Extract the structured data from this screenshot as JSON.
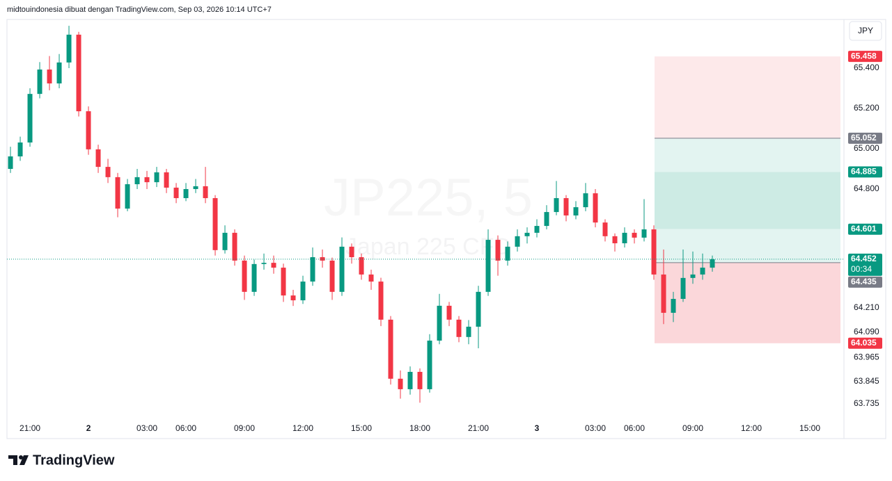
{
  "header": "midtouindonesia dibuat dengan TradingView.com, Sep 03, 2026 10:14 UTC+7",
  "currency_button": "JPY",
  "logo": "TradingView",
  "chart_data": {
    "type": "candlestick",
    "watermark": {
      "symbol": "JP225, 5",
      "name": "Japan 225 CFD"
    },
    "up_color": "#089981",
    "down_color": "#f23645",
    "xlim": [
      -0.36,
      85.5
    ],
    "xticks": [
      {
        "value": 2,
        "label": "21:00"
      },
      {
        "value": 8,
        "label": "2"
      },
      {
        "value": 14,
        "label": "03:00"
      },
      {
        "value": 18,
        "label": "06:00"
      },
      {
        "value": 24,
        "label": "09:00"
      },
      {
        "value": 30,
        "label": "12:00"
      },
      {
        "value": 36,
        "label": "15:00"
      },
      {
        "value": 42,
        "label": "18:00"
      },
      {
        "value": 48,
        "label": "21:00"
      },
      {
        "value": 54,
        "label": "3"
      },
      {
        "value": 60,
        "label": "03:00"
      },
      {
        "value": 64,
        "label": "06:00"
      },
      {
        "value": 70,
        "label": "09:00"
      },
      {
        "value": 76,
        "label": "12:00"
      },
      {
        "value": 82,
        "label": "15:00"
      }
    ],
    "ylim": [
      63.655,
      65.669
    ],
    "yticks": [
      {
        "value": 65.4,
        "label": "65.400"
      },
      {
        "value": 65.2,
        "label": "65.200"
      },
      {
        "value": 65.0,
        "label": "65.000"
      },
      {
        "value": 64.8,
        "label": "64.800"
      },
      {
        "value": 64.21,
        "label": "64.210"
      },
      {
        "value": 64.09,
        "label": "64.090"
      },
      {
        "value": 63.965,
        "label": "63.965"
      },
      {
        "value": 63.845,
        "label": "63.845"
      },
      {
        "value": 63.735,
        "label": "63.735"
      }
    ],
    "ohlc": [
      [
        64.9,
        65.01,
        64.88,
        64.962
      ],
      [
        64.962,
        65.06,
        64.94,
        65.031
      ],
      [
        65.031,
        65.3,
        65.01,
        65.272
      ],
      [
        65.272,
        65.43,
        65.25,
        65.393
      ],
      [
        65.393,
        65.46,
        65.29,
        65.324
      ],
      [
        65.324,
        65.47,
        65.3,
        65.428
      ],
      [
        65.428,
        65.61,
        65.4,
        65.566
      ],
      [
        65.566,
        65.58,
        65.16,
        65.186
      ],
      [
        65.186,
        65.21,
        64.97,
        64.997
      ],
      [
        64.997,
        65.02,
        64.88,
        64.91
      ],
      [
        64.91,
        64.95,
        64.83,
        64.859
      ],
      [
        64.859,
        64.88,
        64.66,
        64.703
      ],
      [
        64.703,
        64.85,
        64.69,
        64.824
      ],
      [
        64.824,
        64.9,
        64.8,
        64.859
      ],
      [
        64.859,
        64.89,
        64.8,
        64.834
      ],
      [
        64.834,
        64.91,
        64.81,
        64.883
      ],
      [
        64.883,
        64.9,
        64.78,
        64.807
      ],
      [
        64.807,
        64.83,
        64.73,
        64.755
      ],
      [
        64.755,
        64.83,
        64.74,
        64.8
      ],
      [
        64.8,
        64.85,
        64.78,
        64.814
      ],
      [
        64.814,
        64.91,
        64.73,
        64.755
      ],
      [
        64.755,
        64.77,
        64.47,
        64.497
      ],
      [
        64.497,
        64.62,
        64.48,
        64.583
      ],
      [
        64.583,
        64.6,
        64.42,
        64.445
      ],
      [
        64.445,
        64.47,
        64.25,
        64.29
      ],
      [
        64.29,
        64.45,
        64.27,
        64.428
      ],
      [
        64.428,
        64.48,
        64.4,
        64.434
      ],
      [
        64.434,
        64.47,
        64.38,
        64.41
      ],
      [
        64.41,
        64.43,
        64.24,
        64.272
      ],
      [
        64.272,
        64.3,
        64.22,
        64.248
      ],
      [
        64.248,
        64.37,
        64.23,
        64.341
      ],
      [
        64.341,
        64.51,
        64.32,
        64.462
      ],
      [
        64.462,
        64.5,
        64.41,
        64.445
      ],
      [
        64.445,
        64.46,
        64.25,
        64.29
      ],
      [
        64.29,
        64.56,
        64.27,
        64.514
      ],
      [
        64.514,
        64.53,
        64.43,
        64.462
      ],
      [
        64.462,
        64.48,
        64.35,
        64.376
      ],
      [
        64.376,
        64.4,
        64.3,
        64.341
      ],
      [
        64.341,
        64.36,
        64.12,
        64.152
      ],
      [
        64.152,
        64.17,
        63.83,
        63.859
      ],
      [
        63.859,
        63.9,
        63.76,
        63.807
      ],
      [
        63.807,
        63.92,
        63.78,
        63.893
      ],
      [
        63.893,
        63.91,
        63.74,
        63.807
      ],
      [
        63.807,
        64.08,
        63.79,
        64.048
      ],
      [
        64.048,
        64.28,
        64.03,
        64.221
      ],
      [
        64.221,
        64.24,
        64.12,
        64.152
      ],
      [
        64.152,
        64.17,
        64.04,
        64.066
      ],
      [
        64.066,
        64.15,
        64.03,
        64.117
      ],
      [
        64.117,
        64.32,
        64.01,
        64.29
      ],
      [
        64.29,
        64.6,
        64.27,
        64.548
      ],
      [
        64.548,
        64.57,
        64.37,
        64.445
      ],
      [
        64.445,
        64.54,
        64.42,
        64.514
      ],
      [
        64.514,
        64.6,
        64.49,
        64.566
      ],
      [
        64.566,
        64.61,
        64.53,
        64.583
      ],
      [
        64.583,
        64.65,
        64.56,
        64.617
      ],
      [
        64.617,
        64.72,
        64.6,
        64.686
      ],
      [
        64.686,
        64.84,
        64.67,
        64.755
      ],
      [
        64.755,
        64.77,
        64.64,
        64.669
      ],
      [
        64.669,
        64.74,
        64.65,
        64.71
      ],
      [
        64.71,
        64.83,
        64.69,
        64.779
      ],
      [
        64.779,
        64.8,
        64.61,
        64.634
      ],
      [
        64.634,
        64.65,
        64.54,
        64.566
      ],
      [
        64.566,
        64.58,
        64.49,
        64.531
      ],
      [
        64.531,
        64.61,
        64.51,
        64.583
      ],
      [
        64.583,
        64.6,
        64.53,
        64.559
      ],
      [
        64.559,
        64.75,
        64.54,
        64.6
      ],
      [
        64.6,
        64.62,
        64.35,
        64.376
      ],
      [
        64.376,
        64.5,
        64.13,
        64.186
      ],
      [
        64.186,
        64.29,
        64.14,
        64.255
      ],
      [
        64.255,
        64.5,
        64.24,
        64.359
      ],
      [
        64.359,
        64.49,
        64.33,
        64.376
      ],
      [
        64.376,
        64.48,
        64.35,
        64.41
      ],
      [
        64.41,
        64.47,
        64.39,
        64.452
      ]
    ],
    "position_tool": {
      "x_range": [
        66.07,
        85.14
      ],
      "levels": [
        {
          "value": 65.458,
          "label": "65.458",
          "color": "#f23645",
          "line": false
        },
        {
          "value": 65.052,
          "label": "65.052",
          "color": "#787b86",
          "line": true
        },
        {
          "value": 64.885,
          "label": "64.885",
          "color": "#089981",
          "line": false
        },
        {
          "value": 64.601,
          "label": "64.601",
          "color": "#089981",
          "line": false
        },
        {
          "value": 64.435,
          "label": "64.435",
          "color": "#787b86",
          "line": true
        },
        {
          "value": 64.035,
          "label": "64.035",
          "color": "#f23645",
          "line": false
        }
      ],
      "zone_colors": [
        "#fde9ea",
        "#e3f4f1",
        "#cdebe4",
        "#e3f4f1",
        "#fbd7da"
      ]
    },
    "last_price": {
      "value": 64.452,
      "label": "64.452",
      "countdown": "00:34",
      "color": "#089981"
    }
  }
}
